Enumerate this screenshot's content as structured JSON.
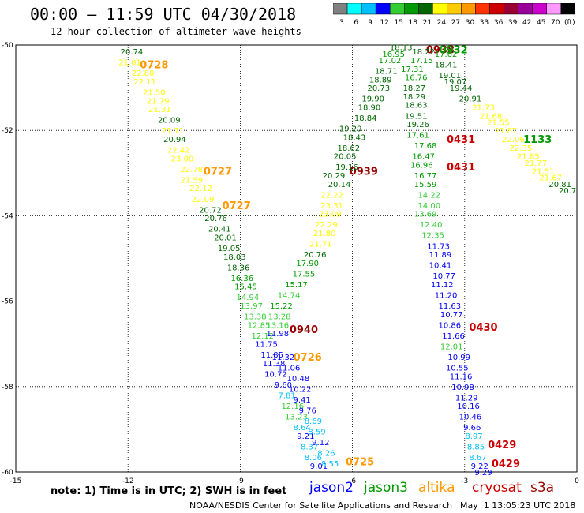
{
  "header": {
    "title": "00:00 – 11:59 UTC 04/30/2018",
    "subtitle": "12 hour collection of altimeter wave heights"
  },
  "colorbar": {
    "labels": [
      "3",
      "6",
      "9",
      "12",
      "15",
      "18",
      "21",
      "24",
      "27",
      "30",
      "33",
      "36",
      "39",
      "42",
      "45",
      "70",
      "(ft)"
    ],
    "colors": [
      "#808080",
      "#00ffff",
      "#00bfff",
      "#0000ff",
      "#33cc33",
      "#009900",
      "#006600",
      "#ffff00",
      "#ffcc00",
      "#ff9900",
      "#ff3300",
      "#cc0000",
      "#990033",
      "#990099",
      "#cc00cc",
      "#ff99ff",
      "#000000"
    ]
  },
  "footer": {
    "note": "note: 1) Time is in UTC; 2) SWH is in feet",
    "satellites": [
      {
        "name": "jason2",
        "color": "#0000ff"
      },
      {
        "name": "jason3",
        "color": "#009900"
      },
      {
        "name": "altika",
        "color": "#ff9900"
      },
      {
        "name": "cryosat",
        "color": "#cc0000"
      },
      {
        "name": "s3a",
        "color": "#990000"
      }
    ],
    "credit": "NOAA/NESDIS Center for Satellite Applications and Research",
    "timestamp": "May  1 13:05:23 UTC 2018"
  },
  "chart_data": {
    "type": "scatter",
    "title": "00:00 – 11:59 UTC 04/30/2018",
    "subtitle": "12 hour collection of altimeter wave heights",
    "units": "ft",
    "xlim": [
      -15,
      0
    ],
    "ylim": [
      -60,
      -50
    ],
    "xticks": [
      "-15",
      "-12",
      "-9",
      "-6",
      "-3",
      "0"
    ],
    "yticks": [
      "-50",
      "-52",
      "-54",
      "-56",
      "-58",
      "-60"
    ],
    "grid": true,
    "series": [
      {
        "name": "altika",
        "color_group": "altika",
        "time_labels": [
          {
            "x": -11.3,
            "y": -50.45,
            "label": "0728"
          },
          {
            "x": -9.6,
            "y": -52.95,
            "label": "0727"
          },
          {
            "x": -9.1,
            "y": -53.75,
            "label": "0727"
          },
          {
            "x": -7.2,
            "y": -57.3,
            "label": "0726"
          },
          {
            "x": -5.8,
            "y": -59.75,
            "label": "0725"
          }
        ]
      },
      {
        "name": "cryosat",
        "color_group": "cryosat",
        "time_labels": [
          {
            "x": -3.1,
            "y": -52.2,
            "label": "0431"
          },
          {
            "x": -3.1,
            "y": -52.85,
            "label": "0431"
          },
          {
            "x": -2.5,
            "y": -56.6,
            "label": "0430"
          },
          {
            "x": -2.0,
            "y": -59.35,
            "label": "0429"
          },
          {
            "x": -1.9,
            "y": -59.8,
            "label": "0429"
          }
        ]
      },
      {
        "name": "s3a",
        "color_group": "s3a",
        "time_labels": [
          {
            "x": -5.7,
            "y": -52.95,
            "label": "0939"
          },
          {
            "x": -7.3,
            "y": -56.65,
            "label": "0940"
          },
          {
            "x": -3.65,
            "y": -50.1,
            "label": "0938"
          }
        ]
      },
      {
        "name": "jason3",
        "color_group": "jason3",
        "time_labels": [
          {
            "x": -1.05,
            "y": -52.2,
            "label": "1133"
          },
          {
            "x": -3.3,
            "y": -50.1,
            "label": "0932"
          }
        ]
      },
      {
        "name": "track_a_descending",
        "points": [
          {
            "x": -11.9,
            "y": -50.15,
            "v": "20.74"
          },
          {
            "x": -11.95,
            "y": -50.4,
            "v": "21.01"
          },
          {
            "x": -11.6,
            "y": -50.65,
            "v": "22.80"
          },
          {
            "x": -11.55,
            "y": -50.85,
            "v": "22.11"
          },
          {
            "x": -11.3,
            "y": -51.1,
            "v": "21.50"
          },
          {
            "x": -11.2,
            "y": -51.3,
            "v": "21.79"
          },
          {
            "x": -11.15,
            "y": -51.5,
            "v": "21.31"
          },
          {
            "x": -10.9,
            "y": -51.75,
            "v": "20.09"
          },
          {
            "x": -10.8,
            "y": -52.0,
            "v": "21.71"
          },
          {
            "x": -10.75,
            "y": -52.2,
            "v": "20.94"
          },
          {
            "x": -10.65,
            "y": -52.45,
            "v": "22.42"
          },
          {
            "x": -10.55,
            "y": -52.65,
            "v": "23.00"
          },
          {
            "x": -10.3,
            "y": -52.9,
            "v": "22.78"
          },
          {
            "x": -10.3,
            "y": -53.15,
            "v": "21.59"
          },
          {
            "x": -10.05,
            "y": -53.35,
            "v": "22.12"
          },
          {
            "x": -10.0,
            "y": -53.6,
            "v": "22.09"
          },
          {
            "x": -9.8,
            "y": -53.85,
            "v": "20.72"
          },
          {
            "x": -9.65,
            "y": -54.05,
            "v": "20.76"
          },
          {
            "x": -9.55,
            "y": -54.3,
            "v": "20.41"
          },
          {
            "x": -9.4,
            "y": -54.5,
            "v": "20.01"
          },
          {
            "x": -9.3,
            "y": -54.75,
            "v": "19.05"
          },
          {
            "x": -9.15,
            "y": -54.95,
            "v": "18.03"
          },
          {
            "x": -9.05,
            "y": -55.2,
            "v": "18.36"
          },
          {
            "x": -8.95,
            "y": -55.45,
            "v": "16.36"
          },
          {
            "x": -8.85,
            "y": -55.65,
            "v": "15.45"
          },
          {
            "x": -8.8,
            "y": -55.9,
            "v": "14.94"
          },
          {
            "x": -8.7,
            "y": -56.1,
            "v": "13.97"
          },
          {
            "x": -8.6,
            "y": -56.35,
            "v": "13.38"
          },
          {
            "x": -8.5,
            "y": -56.55,
            "v": "12.85"
          },
          {
            "x": -8.4,
            "y": -56.8,
            "v": "12.12"
          },
          {
            "x": -8.3,
            "y": -57.0,
            "v": "11.75"
          },
          {
            "x": -8.15,
            "y": -57.25,
            "v": "11.85"
          },
          {
            "x": -8.1,
            "y": -57.45,
            "v": "11.38"
          },
          {
            "x": -8.05,
            "y": -57.7,
            "v": "10.72"
          },
          {
            "x": -7.85,
            "y": -57.95,
            "v": "9.60"
          },
          {
            "x": -7.75,
            "y": -58.2,
            "v": "7.81"
          },
          {
            "x": -7.6,
            "y": -58.45,
            "v": "12.16"
          },
          {
            "x": -7.5,
            "y": -58.7,
            "v": "13.23"
          },
          {
            "x": -7.35,
            "y": -58.95,
            "v": "8.64"
          },
          {
            "x": -7.25,
            "y": -59.15,
            "v": "9.21"
          },
          {
            "x": -7.15,
            "y": -59.4,
            "v": "8.37"
          },
          {
            "x": -7.05,
            "y": -59.65,
            "v": "8.06"
          },
          {
            "x": -6.9,
            "y": -59.85,
            "v": "9.01"
          }
        ]
      },
      {
        "name": "track_b_ascending",
        "points": [
          {
            "x": -6.6,
            "y": -59.8,
            "v": "8.55"
          },
          {
            "x": -6.7,
            "y": -59.55,
            "v": "8.26"
          },
          {
            "x": -6.85,
            "y": -59.3,
            "v": "9.12"
          },
          {
            "x": -6.95,
            "y": -59.05,
            "v": "8.59"
          },
          {
            "x": -7.05,
            "y": -58.8,
            "v": "8.69"
          },
          {
            "x": -7.2,
            "y": -58.55,
            "v": "9.76"
          },
          {
            "x": -7.35,
            "y": -58.3,
            "v": "9.41"
          },
          {
            "x": -7.4,
            "y": -58.05,
            "v": "10.22"
          },
          {
            "x": -7.45,
            "y": -57.8,
            "v": "10.48"
          },
          {
            "x": -7.7,
            "y": -57.55,
            "v": "11.06"
          },
          {
            "x": -7.85,
            "y": -57.3,
            "v": "11.32"
          },
          {
            "x": -8.0,
            "y": -56.75,
            "v": "11.98"
          },
          {
            "x": -8.0,
            "y": -56.55,
            "v": "13.16"
          },
          {
            "x": -7.95,
            "y": -56.35,
            "v": "13.28"
          },
          {
            "x": -7.9,
            "y": -56.1,
            "v": "15.22"
          },
          {
            "x": -7.7,
            "y": -55.85,
            "v": "14.74"
          },
          {
            "x": -7.5,
            "y": -55.6,
            "v": "15.17"
          },
          {
            "x": -7.3,
            "y": -55.35,
            "v": "17.55"
          },
          {
            "x": -7.2,
            "y": -55.1,
            "v": "17.90"
          },
          {
            "x": -7.0,
            "y": -54.9,
            "v": "20.76"
          },
          {
            "x": -6.85,
            "y": -54.65,
            "v": "21.71"
          },
          {
            "x": -6.75,
            "y": -54.4,
            "v": "21.80"
          },
          {
            "x": -6.7,
            "y": -54.2,
            "v": "22.29"
          },
          {
            "x": -6.6,
            "y": -53.95,
            "v": "23.09"
          },
          {
            "x": -6.55,
            "y": -53.75,
            "v": "23.31"
          },
          {
            "x": -6.55,
            "y": -53.5,
            "v": "22.22"
          },
          {
            "x": -6.35,
            "y": -53.25,
            "v": "20.14"
          },
          {
            "x": -6.5,
            "y": -53.05,
            "v": "20.29"
          },
          {
            "x": -6.15,
            "y": -52.85,
            "v": "19.16"
          },
          {
            "x": -6.2,
            "y": -52.6,
            "v": "20.05"
          },
          {
            "x": -6.1,
            "y": -52.4,
            "v": "18.62"
          },
          {
            "x": -5.95,
            "y": -52.15,
            "v": "18.43"
          },
          {
            "x": -6.05,
            "y": -51.95,
            "v": "19.29"
          },
          {
            "x": -5.65,
            "y": -51.7,
            "v": "18.84"
          },
          {
            "x": -5.55,
            "y": -51.45,
            "v": "18.90"
          },
          {
            "x": -5.45,
            "y": -51.25,
            "v": "19.90"
          },
          {
            "x": -5.3,
            "y": -51.0,
            "v": "20.73"
          },
          {
            "x": -5.25,
            "y": -50.8,
            "v": "18.89"
          },
          {
            "x": -5.1,
            "y": -50.6,
            "v": "18.71"
          },
          {
            "x": -5.0,
            "y": -50.35,
            "v": "17.02"
          },
          {
            "x": -4.9,
            "y": -50.2,
            "v": "16.95"
          },
          {
            "x": -4.7,
            "y": -50.05,
            "v": "18.13"
          }
        ]
      },
      {
        "name": "track_c_descending",
        "points": [
          {
            "x": -4.1,
            "y": -50.15,
            "v": "18.22"
          },
          {
            "x": -4.15,
            "y": -50.35,
            "v": "17.15"
          },
          {
            "x": -4.4,
            "y": -50.55,
            "v": "17.31"
          },
          {
            "x": -4.3,
            "y": -50.75,
            "v": "16.76"
          },
          {
            "x": -4.35,
            "y": -51.0,
            "v": "18.27"
          },
          {
            "x": -4.35,
            "y": -51.2,
            "v": "18.29"
          },
          {
            "x": -4.3,
            "y": -51.4,
            "v": "18.63"
          },
          {
            "x": -4.3,
            "y": -51.65,
            "v": "19.51"
          },
          {
            "x": -4.25,
            "y": -51.85,
            "v": "19.26"
          },
          {
            "x": -4.25,
            "y": -52.1,
            "v": "17.61"
          },
          {
            "x": -4.05,
            "y": -52.35,
            "v": "17.68"
          },
          {
            "x": -4.1,
            "y": -52.6,
            "v": "16.47"
          },
          {
            "x": -4.15,
            "y": -52.8,
            "v": "16.96"
          },
          {
            "x": -4.05,
            "y": -53.05,
            "v": "16.77"
          },
          {
            "x": -4.05,
            "y": -53.25,
            "v": "15.59"
          },
          {
            "x": -3.95,
            "y": -53.5,
            "v": "14.22"
          },
          {
            "x": -3.95,
            "y": -53.75,
            "v": "14.00"
          },
          {
            "x": -4.05,
            "y": -53.95,
            "v": "13.69"
          },
          {
            "x": -3.9,
            "y": -54.2,
            "v": "12.40"
          },
          {
            "x": -3.85,
            "y": -54.45,
            "v": "12.35"
          },
          {
            "x": -3.7,
            "y": -54.7,
            "v": "11.73"
          },
          {
            "x": -3.65,
            "y": -54.9,
            "v": "11.89"
          },
          {
            "x": -3.65,
            "y": -55.15,
            "v": "10.41"
          },
          {
            "x": -3.55,
            "y": -55.4,
            "v": "10.77"
          },
          {
            "x": -3.6,
            "y": -55.6,
            "v": "11.12"
          },
          {
            "x": -3.5,
            "y": -55.85,
            "v": "11.20"
          },
          {
            "x": -3.4,
            "y": -56.1,
            "v": "11.63"
          },
          {
            "x": -3.35,
            "y": -56.3,
            "v": "10.77"
          },
          {
            "x": -3.4,
            "y": -56.55,
            "v": "10.86"
          },
          {
            "x": -3.3,
            "y": -56.8,
            "v": "11.66"
          },
          {
            "x": -3.35,
            "y": -57.05,
            "v": "12.01"
          },
          {
            "x": -3.15,
            "y": -57.3,
            "v": "10.99"
          },
          {
            "x": -3.2,
            "y": -57.55,
            "v": "10.55"
          },
          {
            "x": -3.1,
            "y": -57.75,
            "v": "11.16"
          },
          {
            "x": -3.05,
            "y": -58.0,
            "v": "10.98"
          },
          {
            "x": -2.95,
            "y": -58.25,
            "v": "11.29"
          },
          {
            "x": -2.9,
            "y": -58.45,
            "v": "10.16"
          },
          {
            "x": -2.85,
            "y": -58.7,
            "v": "10.46"
          },
          {
            "x": -2.8,
            "y": -58.95,
            "v": "9.66"
          },
          {
            "x": -2.75,
            "y": -59.15,
            "v": "8.97"
          },
          {
            "x": -2.7,
            "y": -59.4,
            "v": "8.85"
          },
          {
            "x": -2.65,
            "y": -59.65,
            "v": "8.67"
          },
          {
            "x": -2.6,
            "y": -59.85,
            "v": "9.22"
          },
          {
            "x": -2.5,
            "y": -60.0,
            "v": "9.29"
          }
        ]
      },
      {
        "name": "track_d_descending",
        "points": [
          {
            "x": -3.5,
            "y": -50.2,
            "v": "17.62"
          },
          {
            "x": -3.5,
            "y": -50.45,
            "v": "18.41"
          },
          {
            "x": -3.4,
            "y": -50.7,
            "v": "19.01"
          },
          {
            "x": -3.25,
            "y": -50.85,
            "v": "19.07"
          },
          {
            "x": -3.1,
            "y": -51.0,
            "v": "19.44"
          },
          {
            "x": -2.85,
            "y": -51.25,
            "v": "20.91"
          },
          {
            "x": -2.5,
            "y": -51.45,
            "v": "21.73"
          },
          {
            "x": -2.3,
            "y": -51.65,
            "v": "21.68"
          },
          {
            "x": -2.1,
            "y": -51.8,
            "v": "21.55"
          },
          {
            "x": -1.9,
            "y": -52.0,
            "v": "21.87"
          },
          {
            "x": -1.7,
            "y": -52.2,
            "v": "22.06"
          },
          {
            "x": -1.5,
            "y": -52.4,
            "v": "22.35"
          },
          {
            "x": -1.3,
            "y": -52.6,
            "v": "21.85"
          },
          {
            "x": -1.1,
            "y": -52.75,
            "v": "21.77"
          },
          {
            "x": -0.9,
            "y": -52.95,
            "v": "21.51"
          },
          {
            "x": -0.7,
            "y": -53.1,
            "v": "21.67"
          },
          {
            "x": -0.45,
            "y": -53.25,
            "v": "20.81"
          },
          {
            "x": -0.25,
            "y": -53.4,
            "v": "20.7"
          }
        ]
      }
    ]
  }
}
